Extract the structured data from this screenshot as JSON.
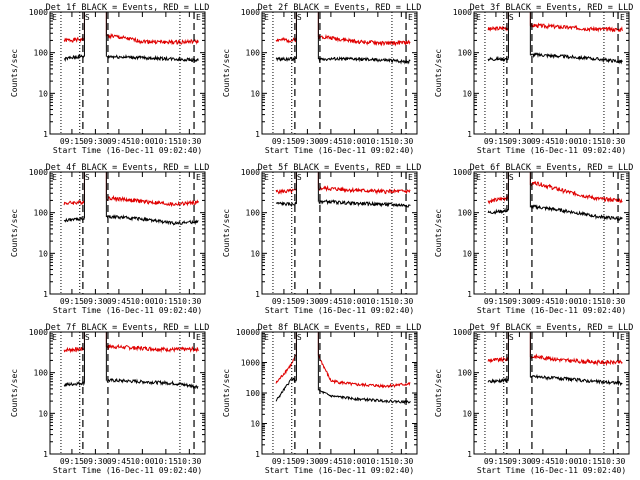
{
  "colors": {
    "red": "#e00000",
    "black": "#000000"
  },
  "axis": {
    "ylabel": "Counts/sec",
    "xlabel": "Start Time (16-Dec-11 09:02:40)",
    "xticks": [
      "09:15",
      "09:30",
      "09:45",
      "10:00",
      "10:15",
      "10:30"
    ],
    "yticks": [
      "1",
      "10",
      "100",
      "1000"
    ],
    "yticks_p8": [
      "1",
      "10",
      "100",
      "1000",
      "10000"
    ]
  },
  "markers": {
    "E": "E",
    "S": "S"
  },
  "chart_data": [
    {
      "type": "line",
      "title": "Det 1f BLACK = Events, RED = LLD",
      "xlabel": "Start Time (16-Dec-11 09:02:40)",
      "ylabel": "Counts/sec",
      "ylog": true,
      "ylim": [
        1,
        1000
      ],
      "xticks": [
        "09:15",
        "09:30",
        "09:45",
        "10:00",
        "10:15",
        "10:30"
      ],
      "series": [
        {
          "values": [
            {
              "x": "09:10",
              "y": 200
            },
            {
              "x": "09:20",
              "y": 210
            },
            {
              "x": "09:40",
              "y": 260
            },
            {
              "x": "10:00",
              "y": 190
            },
            {
              "x": "10:20",
              "y": 180
            },
            {
              "x": "10:36",
              "y": 190
            }
          ]
        },
        {
          "values": [
            {
              "x": "09:10",
              "y": 70
            },
            {
              "x": "09:20",
              "y": 80
            },
            {
              "x": "09:40",
              "y": 80
            },
            {
              "x": "10:00",
              "y": 75
            },
            {
              "x": "10:20",
              "y": 70
            },
            {
              "x": "10:36",
              "y": 65
            }
          ]
        }
      ]
    },
    {
      "type": "line",
      "title": "Det 2f BLACK = Events, RED = LLD",
      "xlabel": "Start Time (16-Dec-11 09:02:40)",
      "ylabel": "Counts/sec",
      "ylog": true,
      "ylim": [
        1,
        1000
      ],
      "xticks": [
        "09:15",
        "09:30",
        "09:45",
        "10:00",
        "10:15",
        "10:30"
      ],
      "series": [
        {
          "values": [
            {
              "x": "09:10",
              "y": 210
            },
            {
              "x": "09:20",
              "y": 200
            },
            {
              "x": "09:40",
              "y": 250
            },
            {
              "x": "10:00",
              "y": 190
            },
            {
              "x": "10:20",
              "y": 170
            },
            {
              "x": "10:36",
              "y": 180
            }
          ]
        },
        {
          "values": [
            {
              "x": "09:10",
              "y": 70
            },
            {
              "x": "09:20",
              "y": 70
            },
            {
              "x": "09:40",
              "y": 70
            },
            {
              "x": "10:00",
              "y": 70
            },
            {
              "x": "10:20",
              "y": 65
            },
            {
              "x": "10:36",
              "y": 60
            }
          ]
        }
      ]
    },
    {
      "type": "line",
      "title": "Det 3f BLACK = Events, RED = LLD",
      "xlabel": "Start Time (16-Dec-11 09:02:40)",
      "ylabel": "Counts/sec",
      "ylog": true,
      "ylim": [
        1,
        1000
      ],
      "xticks": [
        "09:15",
        "09:30",
        "09:45",
        "10:00",
        "10:15",
        "10:30"
      ],
      "series": [
        {
          "values": [
            {
              "x": "09:10",
              "y": 380
            },
            {
              "x": "09:20",
              "y": 400
            },
            {
              "x": "09:40",
              "y": 470
            },
            {
              "x": "10:00",
              "y": 420
            },
            {
              "x": "10:20",
              "y": 380
            },
            {
              "x": "10:36",
              "y": 370
            }
          ]
        },
        {
          "values": [
            {
              "x": "09:10",
              "y": 70
            },
            {
              "x": "09:20",
              "y": 70
            },
            {
              "x": "09:40",
              "y": 90
            },
            {
              "x": "10:00",
              "y": 80
            },
            {
              "x": "10:20",
              "y": 70
            },
            {
              "x": "10:36",
              "y": 60
            }
          ]
        }
      ]
    },
    {
      "type": "line",
      "title": "Det 4f BLACK = Events, RED = LLD",
      "xlabel": "Start Time (16-Dec-11 09:02:40)",
      "ylabel": "Counts/sec",
      "ylog": true,
      "ylim": [
        1,
        1000
      ],
      "xticks": [
        "09:15",
        "09:30",
        "09:45",
        "10:00",
        "10:15",
        "10:30"
      ],
      "series": [
        {
          "values": [
            {
              "x": "09:10",
              "y": 170
            },
            {
              "x": "09:20",
              "y": 180
            },
            {
              "x": "09:40",
              "y": 230
            },
            {
              "x": "10:00",
              "y": 190
            },
            {
              "x": "10:20",
              "y": 160
            },
            {
              "x": "10:36",
              "y": 180
            }
          ]
        },
        {
          "values": [
            {
              "x": "09:10",
              "y": 65
            },
            {
              "x": "09:20",
              "y": 70
            },
            {
              "x": "09:40",
              "y": 80
            },
            {
              "x": "10:00",
              "y": 70
            },
            {
              "x": "10:20",
              "y": 55
            },
            {
              "x": "10:36",
              "y": 60
            }
          ]
        }
      ]
    },
    {
      "type": "line",
      "title": "Det 5f BLACK = Events, RED = LLD",
      "xlabel": "Start Time (16-Dec-11 09:02:40)",
      "ylabel": "Counts/sec",
      "ylog": true,
      "ylim": [
        1,
        1000
      ],
      "xticks": [
        "09:15",
        "09:30",
        "09:45",
        "10:00",
        "10:15",
        "10:30"
      ],
      "series": [
        {
          "values": [
            {
              "x": "09:10",
              "y": 330
            },
            {
              "x": "09:20",
              "y": 340
            },
            {
              "x": "09:40",
              "y": 400
            },
            {
              "x": "10:00",
              "y": 360
            },
            {
              "x": "10:20",
              "y": 330
            },
            {
              "x": "10:36",
              "y": 340
            }
          ]
        },
        {
          "values": [
            {
              "x": "09:10",
              "y": 170
            },
            {
              "x": "09:20",
              "y": 160
            },
            {
              "x": "09:40",
              "y": 190
            },
            {
              "x": "10:00",
              "y": 170
            },
            {
              "x": "10:20",
              "y": 160
            },
            {
              "x": "10:36",
              "y": 150
            }
          ]
        }
      ]
    },
    {
      "type": "line",
      "title": "Det 6f BLACK = Events, RED = LLD",
      "xlabel": "Start Time (16-Dec-11 09:02:40)",
      "ylabel": "Counts/sec",
      "ylog": true,
      "ylim": [
        1,
        1000
      ],
      "xticks": [
        "09:15",
        "09:30",
        "09:45",
        "10:00",
        "10:15",
        "10:30"
      ],
      "series": [
        {
          "values": [
            {
              "x": "09:10",
              "y": 190
            },
            {
              "x": "09:20",
              "y": 220
            },
            {
              "x": "09:40",
              "y": 550
            },
            {
              "x": "10:00",
              "y": 330
            },
            {
              "x": "10:20",
              "y": 220
            },
            {
              "x": "10:36",
              "y": 200
            }
          ]
        },
        {
          "values": [
            {
              "x": "09:10",
              "y": 100
            },
            {
              "x": "09:20",
              "y": 110
            },
            {
              "x": "09:40",
              "y": 140
            },
            {
              "x": "10:00",
              "y": 110
            },
            {
              "x": "10:20",
              "y": 80
            },
            {
              "x": "10:36",
              "y": 70
            }
          ]
        }
      ]
    },
    {
      "type": "line",
      "title": "Det 7f BLACK = Events, RED = LLD",
      "xlabel": "Start Time (16-Dec-11 09:02:40)",
      "ylabel": "Counts/sec",
      "ylog": true,
      "ylim": [
        1,
        1000
      ],
      "xticks": [
        "09:15",
        "09:30",
        "09:45",
        "10:00",
        "10:15",
        "10:30"
      ],
      "series": [
        {
          "values": [
            {
              "x": "09:10",
              "y": 360
            },
            {
              "x": "09:20",
              "y": 380
            },
            {
              "x": "09:40",
              "y": 440
            },
            {
              "x": "10:00",
              "y": 400
            },
            {
              "x": "10:20",
              "y": 370
            },
            {
              "x": "10:36",
              "y": 380
            }
          ]
        },
        {
          "values": [
            {
              "x": "09:10",
              "y": 50
            },
            {
              "x": "09:20",
              "y": 55
            },
            {
              "x": "09:40",
              "y": 65
            },
            {
              "x": "10:00",
              "y": 60
            },
            {
              "x": "10:20",
              "y": 55
            },
            {
              "x": "10:36",
              "y": 45
            }
          ]
        }
      ]
    },
    {
      "type": "line",
      "title": "Det 8f BLACK = Events, RED = LLD",
      "xlabel": "Start Time (16-Dec-11 09:02:40)",
      "ylabel": "Counts/sec",
      "ylog": true,
      "ylim": [
        1,
        10000
      ],
      "xticks": [
        "09:15",
        "09:30",
        "09:45",
        "10:00",
        "10:15",
        "10:30"
      ],
      "series": [
        {
          "values": [
            {
              "x": "09:10",
              "y": 210
            },
            {
              "x": "09:20",
              "y": 900
            },
            {
              "x": "09:30",
              "y": 9000
            },
            {
              "x": "09:45",
              "y": 250
            },
            {
              "x": "10:00",
              "y": 190
            },
            {
              "x": "10:20",
              "y": 170
            },
            {
              "x": "10:36",
              "y": 200
            }
          ]
        },
        {
          "values": [
            {
              "x": "09:10",
              "y": 55
            },
            {
              "x": "09:20",
              "y": 300
            },
            {
              "x": "09:45",
              "y": 80
            },
            {
              "x": "10:00",
              "y": 65
            },
            {
              "x": "10:20",
              "y": 55
            },
            {
              "x": "10:36",
              "y": 50
            }
          ]
        }
      ]
    },
    {
      "type": "line",
      "title": "Det 9f BLACK = Events, RED = LLD",
      "xlabel": "Start Time (16-Dec-11 09:02:40)",
      "ylabel": "Counts/sec",
      "ylog": true,
      "ylim": [
        1,
        1000
      ],
      "xticks": [
        "09:15",
        "09:30",
        "09:45",
        "10:00",
        "10:15",
        "10:30"
      ],
      "series": [
        {
          "values": [
            {
              "x": "09:10",
              "y": 200
            },
            {
              "x": "09:20",
              "y": 210
            },
            {
              "x": "09:40",
              "y": 250
            },
            {
              "x": "10:00",
              "y": 200
            },
            {
              "x": "10:20",
              "y": 180
            },
            {
              "x": "10:36",
              "y": 180
            }
          ]
        },
        {
          "values": [
            {
              "x": "09:10",
              "y": 60
            },
            {
              "x": "09:20",
              "y": 65
            },
            {
              "x": "09:40",
              "y": 80
            },
            {
              "x": "10:00",
              "y": 70
            },
            {
              "x": "10:20",
              "y": 60
            },
            {
              "x": "10:36",
              "y": 55
            }
          ]
        }
      ]
    }
  ]
}
